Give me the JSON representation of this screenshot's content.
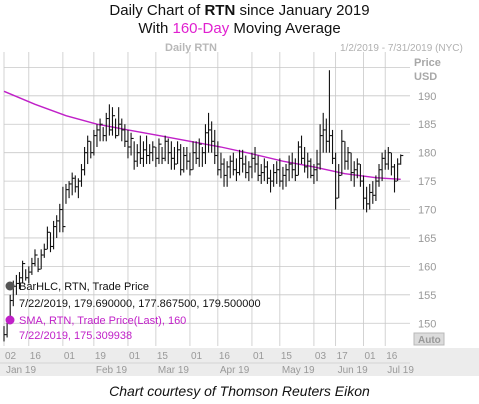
{
  "header": {
    "line1_prefix": "Daily Chart of ",
    "line1_ticker": "RTN",
    "line1_suffix": " since January 2019",
    "line2_prefix": "With ",
    "line2_highlight": "160-Day",
    "line2_suffix": " Moving Average"
  },
  "caption": "Chart courtesy of Thomson Reuters Eikon",
  "chart_data": {
    "type": "line",
    "watermark": "Daily RTN",
    "date_range": "1/2/2019 - 7/31/2019 (NYC)",
    "price_label": "Price",
    "currency_label": "USD",
    "autoscale_label": "Auto",
    "ylim": [
      146,
      197
    ],
    "y_ticks": [
      150,
      155,
      160,
      165,
      170,
      175,
      180,
      185,
      190,
      195
    ],
    "y_tick_labels": [
      "150",
      "155",
      "160",
      "165",
      "170",
      "175",
      "180",
      "185",
      "190",
      ""
    ],
    "x_day_ticks": [
      "02",
      "16",
      "01",
      "19",
      "01",
      "15",
      "01",
      "16",
      "01",
      "15",
      "03",
      "17",
      "01",
      "16"
    ],
    "x_month_labels": [
      "Jan 19",
      "Feb 19",
      "Mar 19",
      "Apr 19",
      "May 19",
      "Jun 19",
      "Jul 19"
    ],
    "legend": {
      "bar_series": "BarHLC, RTN, Trade Price",
      "bar_values": "7/22/2019, 179.690000, 177.867500, 179.500000",
      "sma_series": "SMA, RTN, Trade Price(Last),  160",
      "sma_values": "7/22/2019, 175.309938"
    },
    "colors": {
      "bars": "#111111",
      "sma": "#c020c8",
      "grid": "#c8c8c8",
      "title_highlight": "#e020d0"
    },
    "series": [
      {
        "name": "RTN Daily HLC",
        "kind": "hlc",
        "points": [
          {
            "x": 0,
            "h": 149.5,
            "l": 146.8,
            "c": 148.0
          },
          {
            "x": 2,
            "h": 151.0,
            "l": 147.5,
            "c": 150.5
          },
          {
            "x": 4,
            "h": 155.0,
            "l": 150.0,
            "c": 154.0
          },
          {
            "x": 6,
            "h": 157.5,
            "l": 153.0,
            "c": 156.5
          },
          {
            "x": 8,
            "h": 158.5,
            "l": 155.0,
            "c": 157.0
          },
          {
            "x": 10,
            "h": 159.0,
            "l": 156.0,
            "c": 158.0
          },
          {
            "x": 12,
            "h": 161.0,
            "l": 157.0,
            "c": 160.5
          },
          {
            "x": 14,
            "h": 159.5,
            "l": 157.5,
            "c": 158.0
          },
          {
            "x": 16,
            "h": 160.0,
            "l": 157.0,
            "c": 159.0
          },
          {
            "x": 18,
            "h": 161.5,
            "l": 158.5,
            "c": 160.5
          },
          {
            "x": 20,
            "h": 163.0,
            "l": 160.0,
            "c": 162.0
          },
          {
            "x": 22,
            "h": 161.5,
            "l": 159.0,
            "c": 159.5
          },
          {
            "x": 24,
            "h": 163.0,
            "l": 159.5,
            "c": 162.0
          },
          {
            "x": 26,
            "h": 164.0,
            "l": 161.5,
            "c": 163.0
          },
          {
            "x": 28,
            "h": 167.0,
            "l": 163.0,
            "c": 166.0
          },
          {
            "x": 30,
            "h": 166.0,
            "l": 162.5,
            "c": 163.5
          },
          {
            "x": 32,
            "h": 168.0,
            "l": 163.0,
            "c": 167.0
          },
          {
            "x": 34,
            "h": 169.0,
            "l": 165.0,
            "c": 168.0
          },
          {
            "x": 36,
            "h": 171.0,
            "l": 166.0,
            "c": 170.0
          },
          {
            "x": 38,
            "h": 174.0,
            "l": 166.0,
            "c": 167.0
          },
          {
            "x": 40,
            "h": 174.5,
            "l": 171.0,
            "c": 173.5
          },
          {
            "x": 42,
            "h": 175.0,
            "l": 172.0,
            "c": 174.5
          },
          {
            "x": 44,
            "h": 176.5,
            "l": 172.5,
            "c": 175.5
          },
          {
            "x": 46,
            "h": 176.0,
            "l": 173.0,
            "c": 174.0
          },
          {
            "x": 48,
            "h": 175.5,
            "l": 172.0,
            "c": 175.0
          },
          {
            "x": 50,
            "h": 178.0,
            "l": 174.0,
            "c": 177.0
          },
          {
            "x": 52,
            "h": 181.0,
            "l": 176.0,
            "c": 180.0
          },
          {
            "x": 54,
            "h": 183.0,
            "l": 178.0,
            "c": 182.0
          },
          {
            "x": 56,
            "h": 182.0,
            "l": 179.0,
            "c": 180.0
          },
          {
            "x": 58,
            "h": 184.0,
            "l": 179.5,
            "c": 183.0
          },
          {
            "x": 60,
            "h": 185.0,
            "l": 181.0,
            "c": 184.0
          },
          {
            "x": 62,
            "h": 186.0,
            "l": 182.0,
            "c": 185.0
          },
          {
            "x": 64,
            "h": 184.5,
            "l": 182.0,
            "c": 183.0
          },
          {
            "x": 66,
            "h": 187.0,
            "l": 182.0,
            "c": 186.0
          },
          {
            "x": 68,
            "h": 188.5,
            "l": 183.0,
            "c": 184.0
          },
          {
            "x": 70,
            "h": 188.0,
            "l": 183.0,
            "c": 186.5
          },
          {
            "x": 72,
            "h": 186.0,
            "l": 182.5,
            "c": 183.0
          },
          {
            "x": 74,
            "h": 188.0,
            "l": 183.0,
            "c": 185.0
          },
          {
            "x": 76,
            "h": 186.0,
            "l": 182.0,
            "c": 184.0
          },
          {
            "x": 78,
            "h": 185.0,
            "l": 181.0,
            "c": 182.0
          },
          {
            "x": 80,
            "h": 184.0,
            "l": 179.0,
            "c": 181.0
          },
          {
            "x": 82,
            "h": 183.5,
            "l": 179.5,
            "c": 182.5
          },
          {
            "x": 84,
            "h": 182.0,
            "l": 177.0,
            "c": 178.5
          },
          {
            "x": 86,
            "h": 181.5,
            "l": 177.5,
            "c": 180.0
          },
          {
            "x": 88,
            "h": 183.0,
            "l": 178.0,
            "c": 179.0
          },
          {
            "x": 90,
            "h": 182.0,
            "l": 177.5,
            "c": 180.5
          },
          {
            "x": 92,
            "h": 183.0,
            "l": 178.0,
            "c": 179.5
          },
          {
            "x": 94,
            "h": 181.5,
            "l": 178.0,
            "c": 180.0
          },
          {
            "x": 96,
            "h": 182.0,
            "l": 178.5,
            "c": 181.0
          },
          {
            "x": 98,
            "h": 181.0,
            "l": 177.5,
            "c": 179.0
          },
          {
            "x": 100,
            "h": 182.5,
            "l": 178.0,
            "c": 181.5
          },
          {
            "x": 102,
            "h": 181.0,
            "l": 178.0,
            "c": 179.0
          },
          {
            "x": 104,
            "h": 183.0,
            "l": 178.5,
            "c": 182.0
          },
          {
            "x": 106,
            "h": 182.5,
            "l": 178.0,
            "c": 180.0
          },
          {
            "x": 108,
            "h": 182.0,
            "l": 177.0,
            "c": 179.0
          },
          {
            "x": 110,
            "h": 181.0,
            "l": 177.0,
            "c": 178.0
          },
          {
            "x": 112,
            "h": 182.0,
            "l": 178.0,
            "c": 180.5
          },
          {
            "x": 114,
            "h": 181.5,
            "l": 176.0,
            "c": 177.0
          },
          {
            "x": 116,
            "h": 181.0,
            "l": 176.5,
            "c": 179.5
          },
          {
            "x": 118,
            "h": 181.0,
            "l": 177.0,
            "c": 178.5
          },
          {
            "x": 120,
            "h": 180.0,
            "l": 176.0,
            "c": 177.0
          },
          {
            "x": 122,
            "h": 182.0,
            "l": 177.0,
            "c": 180.0
          },
          {
            "x": 124,
            "h": 182.0,
            "l": 178.0,
            "c": 179.0
          },
          {
            "x": 126,
            "h": 182.5,
            "l": 177.5,
            "c": 181.5
          },
          {
            "x": 128,
            "h": 181.0,
            "l": 177.5,
            "c": 180.0
          },
          {
            "x": 130,
            "h": 185.0,
            "l": 178.0,
            "c": 183.5
          },
          {
            "x": 132,
            "h": 187.0,
            "l": 180.0,
            "c": 184.0
          },
          {
            "x": 134,
            "h": 185.5,
            "l": 180.0,
            "c": 182.0
          },
          {
            "x": 136,
            "h": 184.0,
            "l": 178.0,
            "c": 179.5
          },
          {
            "x": 138,
            "h": 182.0,
            "l": 176.0,
            "c": 177.0
          },
          {
            "x": 140,
            "h": 180.0,
            "l": 175.5,
            "c": 178.0
          },
          {
            "x": 142,
            "h": 179.0,
            "l": 174.0,
            "c": 176.0
          },
          {
            "x": 144,
            "h": 178.5,
            "l": 174.0,
            "c": 177.5
          },
          {
            "x": 146,
            "h": 179.5,
            "l": 175.5,
            "c": 178.5
          },
          {
            "x": 148,
            "h": 180.0,
            "l": 176.0,
            "c": 177.0
          },
          {
            "x": 150,
            "h": 179.0,
            "l": 175.0,
            "c": 176.5
          },
          {
            "x": 152,
            "h": 180.5,
            "l": 176.0,
            "c": 179.0
          },
          {
            "x": 154,
            "h": 180.5,
            "l": 176.5,
            "c": 178.0
          },
          {
            "x": 156,
            "h": 179.5,
            "l": 175.5,
            "c": 176.5
          },
          {
            "x": 158,
            "h": 178.5,
            "l": 175.0,
            "c": 177.5
          },
          {
            "x": 160,
            "h": 180.0,
            "l": 175.5,
            "c": 179.0
          },
          {
            "x": 162,
            "h": 181.0,
            "l": 176.5,
            "c": 178.0
          },
          {
            "x": 164,
            "h": 179.5,
            "l": 175.0,
            "c": 176.0
          },
          {
            "x": 166,
            "h": 178.0,
            "l": 174.5,
            "c": 176.5
          },
          {
            "x": 168,
            "h": 179.0,
            "l": 175.0,
            "c": 177.5
          },
          {
            "x": 170,
            "h": 178.5,
            "l": 174.5,
            "c": 175.5
          },
          {
            "x": 172,
            "h": 177.0,
            "l": 173.0,
            "c": 175.0
          },
          {
            "x": 174,
            "h": 178.0,
            "l": 174.0,
            "c": 176.5
          },
          {
            "x": 176,
            "h": 178.5,
            "l": 174.5,
            "c": 177.0
          },
          {
            "x": 178,
            "h": 179.0,
            "l": 174.0,
            "c": 175.0
          },
          {
            "x": 180,
            "h": 177.5,
            "l": 173.5,
            "c": 176.0
          },
          {
            "x": 182,
            "h": 178.0,
            "l": 174.0,
            "c": 177.0
          },
          {
            "x": 184,
            "h": 179.5,
            "l": 175.0,
            "c": 178.0
          },
          {
            "x": 186,
            "h": 180.0,
            "l": 175.5,
            "c": 177.0
          },
          {
            "x": 188,
            "h": 179.0,
            "l": 175.0,
            "c": 176.0
          },
          {
            "x": 190,
            "h": 182.0,
            "l": 176.0,
            "c": 181.0
          },
          {
            "x": 192,
            "h": 183.0,
            "l": 178.0,
            "c": 179.0
          },
          {
            "x": 194,
            "h": 181.0,
            "l": 176.5,
            "c": 177.5
          },
          {
            "x": 196,
            "h": 180.0,
            "l": 175.5,
            "c": 178.5
          },
          {
            "x": 198,
            "h": 179.0,
            "l": 175.5,
            "c": 176.0
          },
          {
            "x": 200,
            "h": 178.0,
            "l": 174.5,
            "c": 177.0
          },
          {
            "x": 202,
            "h": 180.5,
            "l": 175.0,
            "c": 178.0
          },
          {
            "x": 204,
            "h": 185.0,
            "l": 177.0,
            "c": 183.0
          },
          {
            "x": 206,
            "h": 187.0,
            "l": 180.0,
            "c": 184.0
          },
          {
            "x": 208,
            "h": 186.0,
            "l": 180.0,
            "c": 182.0
          },
          {
            "x": 210,
            "h": 194.5,
            "l": 180.0,
            "c": 183.0
          },
          {
            "x": 212,
            "h": 184.0,
            "l": 178.0,
            "c": 179.0
          },
          {
            "x": 214,
            "h": 180.0,
            "l": 170.0,
            "c": 172.0
          },
          {
            "x": 216,
            "h": 178.0,
            "l": 172.0,
            "c": 176.0
          },
          {
            "x": 218,
            "h": 184.0,
            "l": 176.0,
            "c": 182.0
          },
          {
            "x": 220,
            "h": 182.0,
            "l": 177.0,
            "c": 178.5
          },
          {
            "x": 222,
            "h": 181.0,
            "l": 177.0,
            "c": 180.0
          },
          {
            "x": 224,
            "h": 180.0,
            "l": 175.0,
            "c": 176.5
          },
          {
            "x": 226,
            "h": 178.5,
            "l": 174.0,
            "c": 177.0
          },
          {
            "x": 228,
            "h": 179.0,
            "l": 175.5,
            "c": 178.0
          },
          {
            "x": 230,
            "h": 178.0,
            "l": 174.0,
            "c": 175.0
          },
          {
            "x": 232,
            "h": 176.0,
            "l": 170.0,
            "c": 172.0
          },
          {
            "x": 234,
            "h": 174.0,
            "l": 169.5,
            "c": 171.0
          },
          {
            "x": 236,
            "h": 174.5,
            "l": 170.0,
            "c": 173.0
          },
          {
            "x": 238,
            "h": 175.0,
            "l": 171.0,
            "c": 172.5
          },
          {
            "x": 240,
            "h": 176.0,
            "l": 171.5,
            "c": 175.0
          },
          {
            "x": 242,
            "h": 178.0,
            "l": 174.0,
            "c": 177.0
          },
          {
            "x": 244,
            "h": 180.0,
            "l": 175.0,
            "c": 179.0
          },
          {
            "x": 246,
            "h": 180.5,
            "l": 177.0,
            "c": 178.0
          },
          {
            "x": 248,
            "h": 181.0,
            "l": 177.0,
            "c": 180.0
          },
          {
            "x": 250,
            "h": 180.0,
            "l": 176.0,
            "c": 177.5
          },
          {
            "x": 252,
            "h": 178.0,
            "l": 173.0,
            "c": 175.0
          },
          {
            "x": 254,
            "h": 179.0,
            "l": 175.0,
            "c": 178.0
          },
          {
            "x": 256,
            "h": 179.69,
            "l": 177.87,
            "c": 179.5
          }
        ]
      },
      {
        "name": "SMA 160",
        "kind": "line",
        "points": [
          [
            0,
            190.8
          ],
          [
            20,
            188.5
          ],
          [
            40,
            186.5
          ],
          [
            60,
            185.0
          ],
          [
            80,
            184.0
          ],
          [
            100,
            183.0
          ],
          [
            120,
            182.0
          ],
          [
            140,
            181.0
          ],
          [
            160,
            179.8
          ],
          [
            180,
            178.5
          ],
          [
            200,
            177.5
          ],
          [
            220,
            176.3
          ],
          [
            240,
            175.6
          ],
          [
            256,
            175.31
          ]
        ]
      }
    ],
    "x_tick_positions": [
      0,
      16,
      38,
      58,
      80,
      98,
      120,
      138,
      160,
      178,
      200,
      214,
      232,
      246
    ]
  }
}
